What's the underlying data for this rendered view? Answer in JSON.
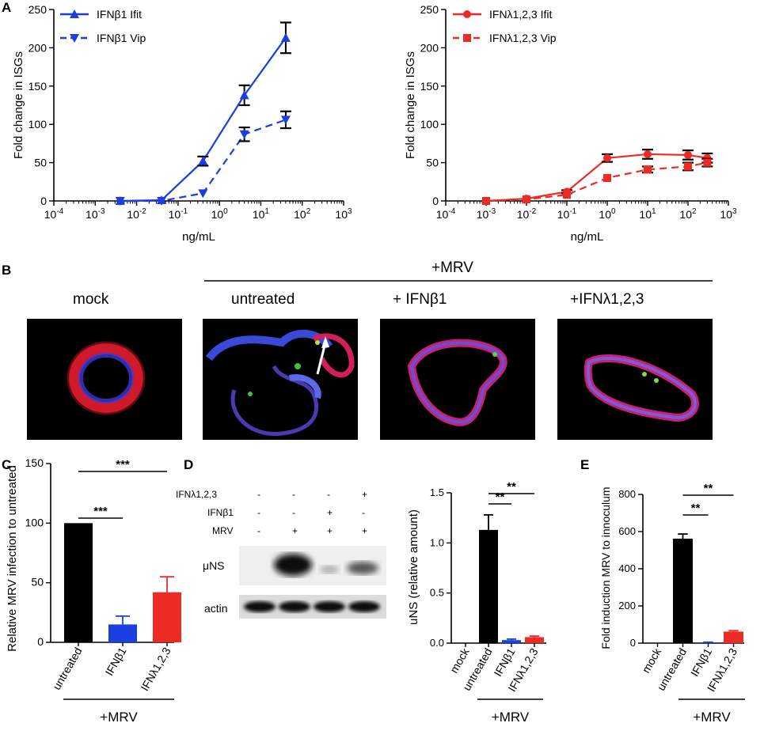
{
  "colors": {
    "blue": "#1a3ee0",
    "red": "#ee2a24",
    "black": "#000000",
    "ifit_blue": "#1a3ee0"
  },
  "panel_labels": {
    "a": "A",
    "b": "B",
    "c": "C",
    "d": "D",
    "e": "E"
  },
  "chart_data": [
    {
      "id": "A1",
      "type": "line",
      "xscale": "log",
      "xlabel": "ng/mL",
      "ylabel": "Fold change in ISGs",
      "ylim": [
        0,
        250
      ],
      "yticks": [
        0,
        50,
        100,
        150,
        200,
        250
      ],
      "xticks": [
        "10-4",
        "10-3",
        "10-2",
        "10-1",
        "100",
        "101",
        "102",
        "103"
      ],
      "xticks_exp": [
        -4,
        -3,
        -2,
        -1,
        0,
        1,
        2,
        3
      ],
      "series": [
        {
          "name": "IFNβ1 Ifit",
          "style": "solid",
          "marker": "triangle-up",
          "color": "#1a3ee0",
          "x": [
            0.004,
            0.04,
            0.4,
            4,
            40
          ],
          "y": [
            0,
            1,
            52,
            138,
            213
          ],
          "err": [
            0,
            0,
            6,
            13,
            20
          ]
        },
        {
          "name": "IFNβ1 Vip",
          "style": "dashed",
          "marker": "triangle-down",
          "color": "#1a3ee0",
          "x": [
            0.004,
            0.04,
            0.4,
            4,
            40
          ],
          "y": [
            0,
            0,
            10,
            87,
            106
          ],
          "err": [
            0,
            0,
            0,
            9,
            11
          ]
        }
      ]
    },
    {
      "id": "A2",
      "type": "line",
      "xscale": "log",
      "xlabel": "ng/mL",
      "ylabel": "Fold change in ISGs",
      "ylim": [
        0,
        250
      ],
      "yticks": [
        0,
        50,
        100,
        150,
        200,
        250
      ],
      "xticks": [
        "10-4",
        "10-3",
        "10-2",
        "10-1",
        "100",
        "101",
        "102",
        "103"
      ],
      "xticks_exp": [
        -4,
        -3,
        -2,
        -1,
        0,
        1,
        2,
        3
      ],
      "series": [
        {
          "name": "IFNλ1,2,3 Ifit",
          "style": "solid",
          "marker": "circle",
          "color": "#ee2a24",
          "x": [
            0.001,
            0.01,
            0.1,
            1,
            10,
            100,
            300
          ],
          "y": [
            0,
            3,
            12,
            56,
            61,
            60,
            56
          ],
          "err": [
            0,
            0,
            2,
            5,
            6,
            6,
            6
          ]
        },
        {
          "name": "IFNλ1,2,3 Vip",
          "style": "dashed",
          "marker": "square",
          "color": "#ee2a24",
          "x": [
            0.001,
            0.01,
            0.1,
            1,
            10,
            100,
            300
          ],
          "y": [
            0,
            2,
            8,
            30,
            41,
            45,
            50
          ],
          "err": [
            0,
            0,
            0,
            0,
            4,
            5,
            5
          ]
        }
      ]
    },
    {
      "id": "C",
      "type": "bar",
      "ylabel": "Relative MRV infection to untreated",
      "ylim": [
        0,
        150
      ],
      "yticks": [
        0,
        50,
        100,
        150
      ],
      "categories": [
        "untreated",
        "IFNβ1",
        "IFNλ1,2,3"
      ],
      "values": [
        100,
        15,
        42
      ],
      "err": [
        0,
        7,
        13
      ],
      "colors": [
        "#000000",
        "#1a3ee0",
        "#ee2a24"
      ],
      "significance": [
        "***",
        "***"
      ],
      "group_label": "+MRV"
    },
    {
      "id": "D",
      "type": "bar",
      "ylabel": "uNS (relative amount)",
      "ylim": [
        0,
        1.5
      ],
      "yticks": [
        "0.0",
        "0.5",
        "1.0",
        "1.5"
      ],
      "categories": [
        "mock",
        "untreated",
        "IFNβ1",
        "IFNλ1,2,3"
      ],
      "values": [
        0,
        1.13,
        0.03,
        0.06
      ],
      "err": [
        0,
        0.15,
        0.01,
        0.01
      ],
      "colors": [
        "#000000",
        "#000000",
        "#1a3ee0",
        "#ee2a24"
      ],
      "significance": [
        "**",
        "**"
      ],
      "group_label": "+MRV"
    },
    {
      "id": "E",
      "type": "bar",
      "ylabel": "Fold induction MRV  to innoculum",
      "ylim": [
        0,
        800
      ],
      "yticks": [
        0,
        200,
        400,
        600,
        800
      ],
      "categories": [
        "mock",
        "untreated",
        "IFNβ1",
        "IFNλ1,2,3"
      ],
      "values": [
        0,
        562,
        4,
        62
      ],
      "err": [
        0,
        25,
        1,
        5
      ],
      "colors": [
        "#000000",
        "#000000",
        "#1a3ee0",
        "#ee2a24"
      ],
      "significance": [
        "**",
        "**"
      ],
      "group_label": "+MRV"
    }
  ],
  "panel_b": {
    "group_label": "+MRV",
    "titles": [
      "mock",
      "untreated",
      "+ IFNβ1",
      "+IFNλ1,2,3"
    ]
  },
  "blot": {
    "row_labels": [
      "IFNλ1,2,3",
      "IFNβ1",
      "MRV"
    ],
    "row_signs": [
      [
        "-",
        "-",
        "-",
        "+"
      ],
      [
        "-",
        "-",
        "+",
        "-"
      ],
      [
        "-",
        "+",
        "+",
        "+"
      ]
    ],
    "band_labels": [
      "μNS",
      "actin"
    ]
  }
}
